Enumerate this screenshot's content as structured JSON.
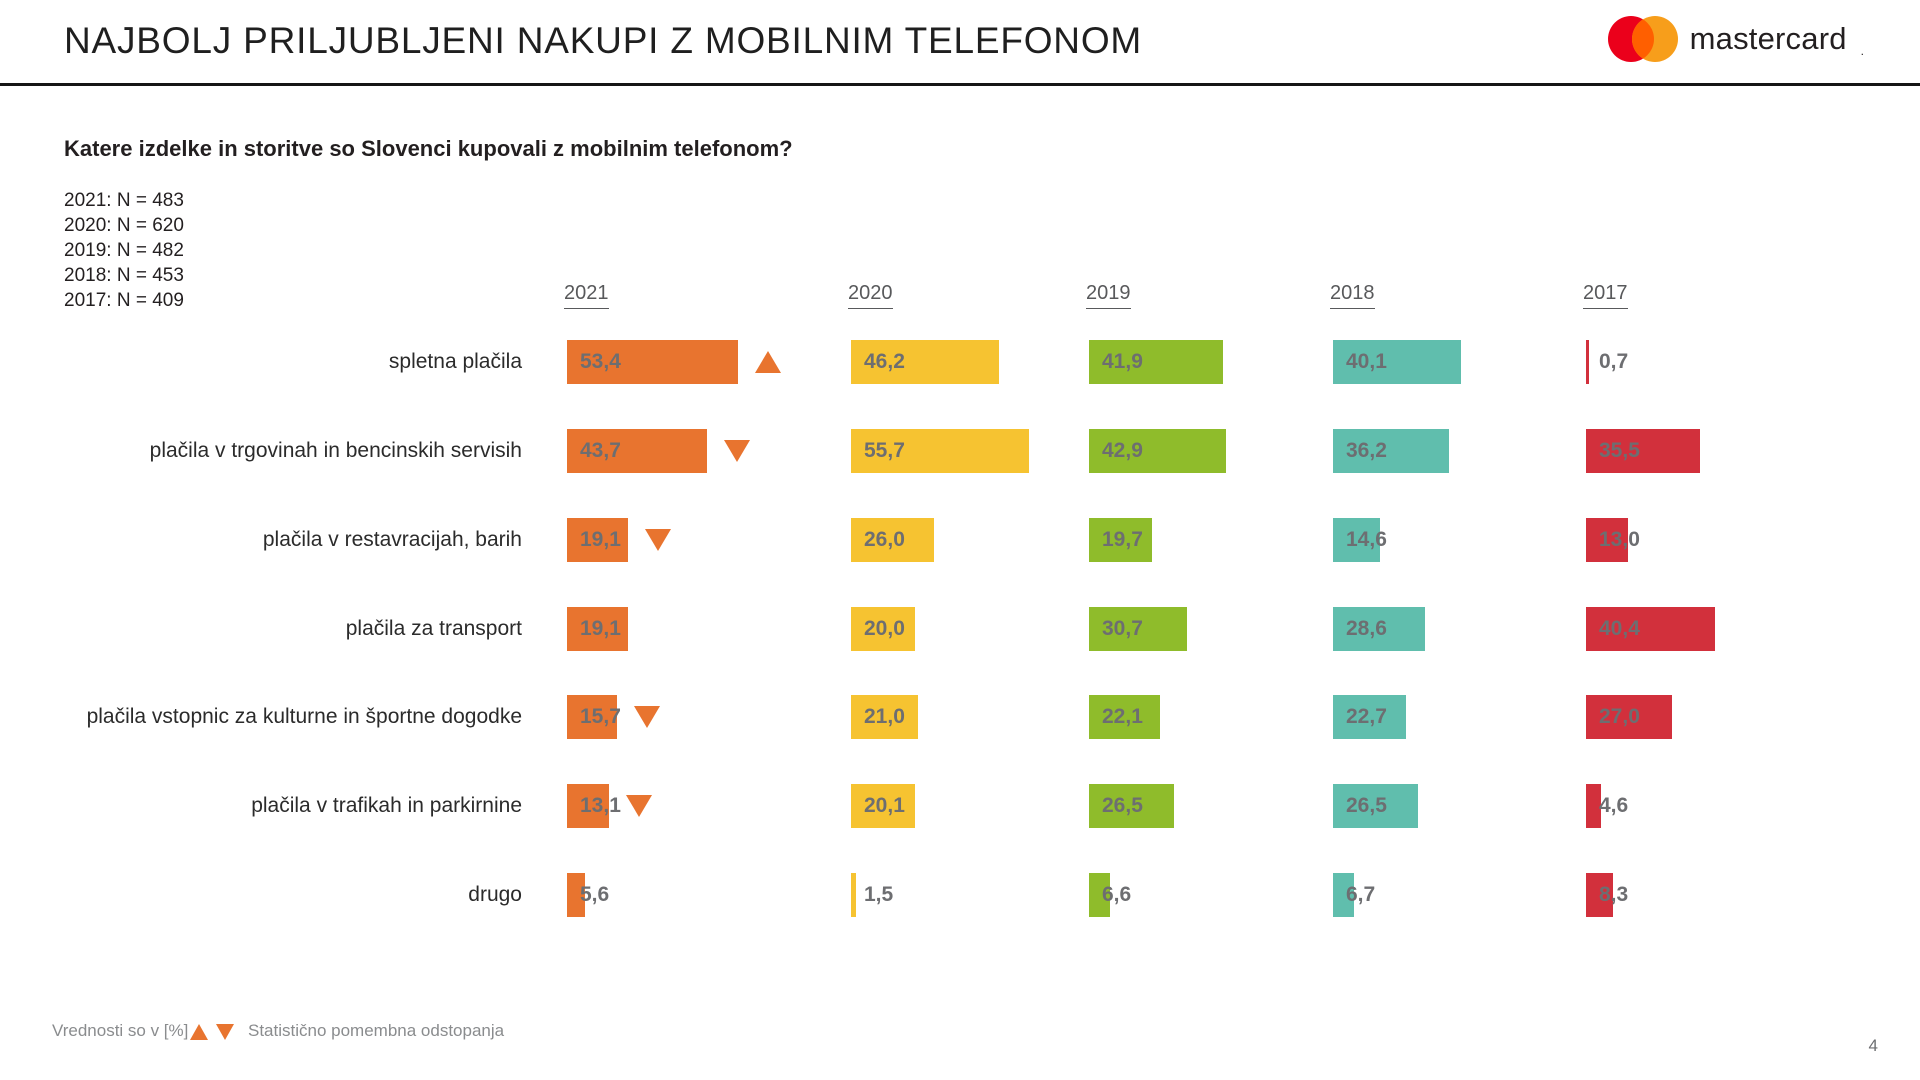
{
  "header": {
    "title": "NAJBOLJ PRILJUBLJENI NAKUPI Z MOBILNIM TELEFONOM",
    "logo_text": "mastercard",
    "logo_tm": ".",
    "logo_colors": {
      "left_circle": "#EB001B",
      "right_circle": "#F79E1B",
      "overlap": "#FF5F00"
    }
  },
  "question": "Katere izdelke in storitve so Slovenci kupovali z mobilnim telefonom?",
  "sample_sizes": [
    "2021: N = 483",
    "2020: N = 620",
    "2019: N = 482",
    "2018: N = 453",
    "2017: N = 409"
  ],
  "chart_data": {
    "type": "bar",
    "orientation": "horizontal",
    "unit": "%",
    "value_axis_hidden": true,
    "categories": [
      "spletna plačila",
      "plačila v trgovinah in bencinskih servisih",
      "plačila v restavracijah, barih",
      "plačila za transport",
      "plačila vstopnic za kulturne in športne dogodke",
      "plačila v trafikah in parkirnine",
      "drugo"
    ],
    "series": [
      {
        "name": "2021",
        "color": "#e8742f",
        "values": [
          53.4,
          43.7,
          19.1,
          19.1,
          15.7,
          13.1,
          5.6
        ],
        "labels": [
          "53,4",
          "43,7",
          "19,1",
          "19,1",
          "15,7",
          "13,1",
          "5,6"
        ],
        "significance": [
          "up",
          "down",
          "down",
          null,
          "down",
          "down",
          null
        ]
      },
      {
        "name": "2020",
        "color": "#f6c331",
        "values": [
          46.2,
          55.7,
          26.0,
          20.0,
          21.0,
          20.1,
          1.5
        ],
        "labels": [
          "46,2",
          "55,7",
          "26,0",
          "20,0",
          "21,0",
          "20,1",
          "1,5"
        ],
        "significance": [
          null,
          null,
          null,
          null,
          null,
          null,
          null
        ]
      },
      {
        "name": "2019",
        "color": "#8fbc2b",
        "values": [
          41.9,
          42.9,
          19.7,
          30.7,
          22.1,
          26.5,
          6.6
        ],
        "labels": [
          "41,9",
          "42,9",
          "19,7",
          "30,7",
          "22,1",
          "26,5",
          "6,6"
        ],
        "significance": [
          null,
          null,
          null,
          null,
          null,
          null,
          null
        ]
      },
      {
        "name": "2018",
        "color": "#60bead",
        "values": [
          40.1,
          36.2,
          14.6,
          28.6,
          22.7,
          26.5,
          6.7
        ],
        "labels": [
          "40,1",
          "36,2",
          "14,6",
          "28,6",
          "22,7",
          "26,5",
          "6,7"
        ],
        "significance": [
          null,
          null,
          null,
          null,
          null,
          null,
          null
        ]
      },
      {
        "name": "2017",
        "color": "#d2303c",
        "values": [
          0.7,
          35.5,
          13.0,
          40.4,
          27.0,
          4.6,
          8.3
        ],
        "labels": [
          "0,7",
          "35,5",
          "13,0",
          "40,4",
          "27,0",
          "4,6",
          "8,3"
        ],
        "significance": [
          null,
          null,
          null,
          null,
          null,
          null,
          null
        ]
      }
    ]
  },
  "footer": {
    "values_note": "Vrednosti so v [%]",
    "legend": "Statistično pomembna odstopanja",
    "page_number": "4"
  }
}
